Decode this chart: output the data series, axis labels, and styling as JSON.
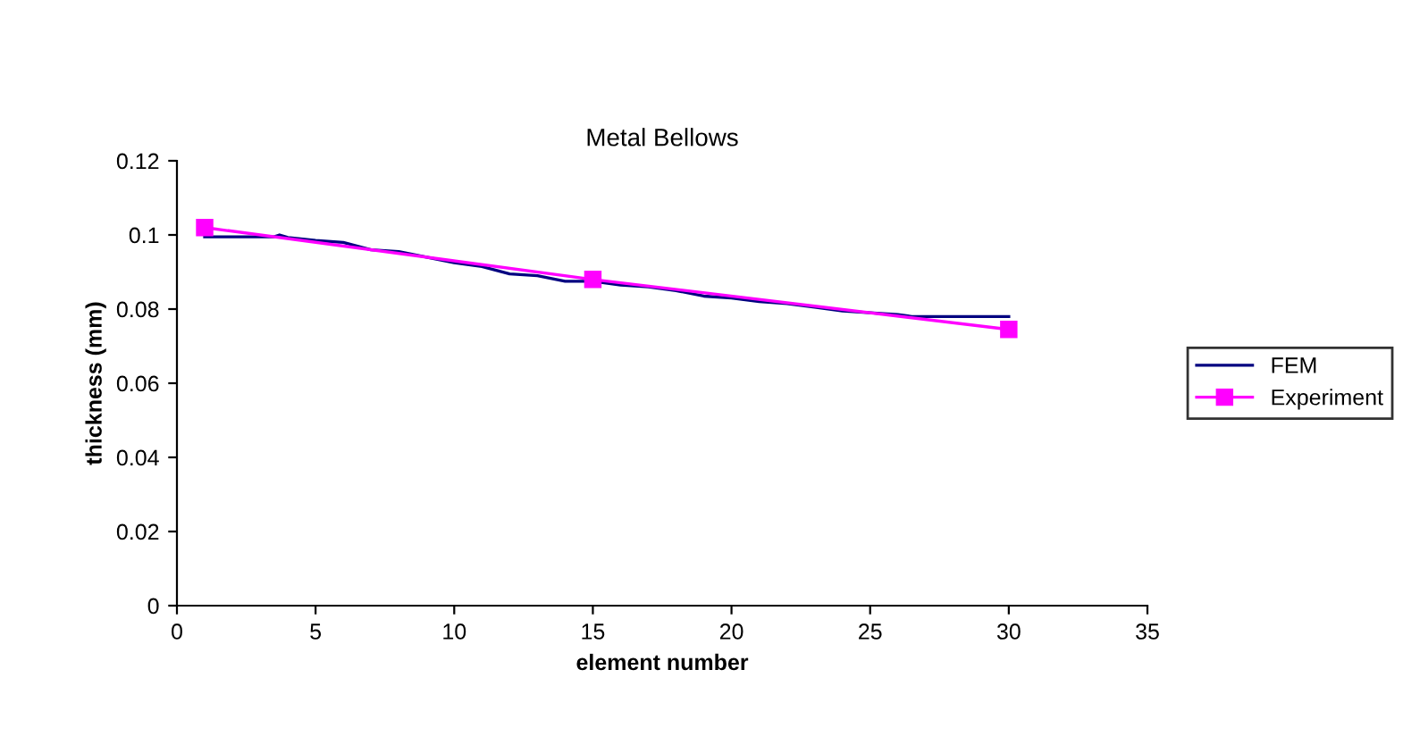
{
  "chart_data": {
    "type": "line",
    "title": "Metal Bellows",
    "xlabel": "element number",
    "ylabel": "thickness (mm)",
    "xlim": [
      0,
      35
    ],
    "xticks": [
      0,
      5,
      10,
      15,
      20,
      25,
      30,
      35
    ],
    "ylim": [
      0,
      0.12
    ],
    "yticks": [
      0,
      0.02,
      0.04,
      0.06,
      0.08,
      0.1,
      0.12
    ],
    "grid": false,
    "legend": "right",
    "series": [
      {
        "name": "FEM",
        "color": "#000080",
        "marker": "none",
        "x": [
          1,
          3.5,
          3.7,
          4,
          5,
          6,
          7,
          8,
          9,
          10,
          11,
          12,
          13,
          14,
          15,
          16,
          17,
          18,
          19,
          20,
          21,
          22,
          23,
          24,
          25,
          26,
          26.5,
          30
        ],
        "values": [
          0.0995,
          0.0995,
          0.1,
          0.0993,
          0.0985,
          0.098,
          0.096,
          0.0955,
          0.094,
          0.0925,
          0.0915,
          0.0895,
          0.089,
          0.0875,
          0.0875,
          0.0865,
          0.086,
          0.085,
          0.0835,
          0.083,
          0.082,
          0.0815,
          0.0805,
          0.0795,
          0.079,
          0.0785,
          0.078,
          0.078
        ]
      },
      {
        "name": "Experiment",
        "color": "#ff00ff",
        "marker": "square",
        "x": [
          1,
          15,
          30
        ],
        "values": [
          0.102,
          0.088,
          0.0745
        ]
      }
    ]
  }
}
